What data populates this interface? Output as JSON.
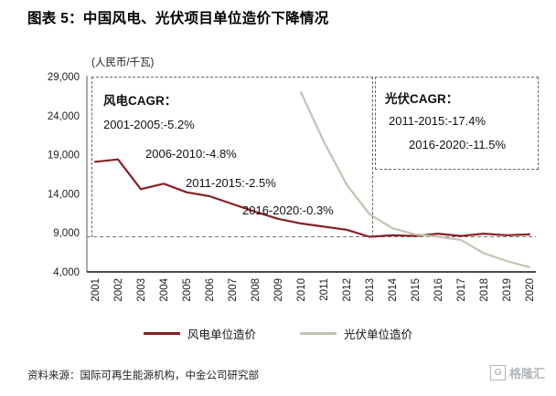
{
  "title": "图表 5：中国风电、光伏项目单位造价下降情况",
  "unit_label": "(人民币/千瓦)",
  "annotations": {
    "wind": {
      "heading": "风电CAGR：",
      "lines": [
        "2001-2005:-5.2%",
        "2006-2010:-4.8%",
        "2011-2015:-2.5%",
        "2016-2020:-0.3%"
      ]
    },
    "pv": {
      "heading": "光伏CAGR：",
      "lines": [
        "2011-2015:-17.4%",
        "2016-2020:-11.5%"
      ]
    }
  },
  "source": "资料来源：国际可再生能源机构，中金公司研究部",
  "logo": {
    "icon": "G",
    "text": "格隆汇"
  },
  "chart_data": {
    "type": "line",
    "x": [
      2001,
      2002,
      2003,
      2004,
      2005,
      2006,
      2007,
      2008,
      2009,
      2010,
      2011,
      2012,
      2013,
      2014,
      2015,
      2016,
      2017,
      2018,
      2019,
      2020
    ],
    "series": [
      {
        "name": "风电单位造价",
        "color": "#8a1f24",
        "values": [
          18100,
          18400,
          14600,
          15300,
          14200,
          13700,
          12700,
          11700,
          10800,
          10200,
          9800,
          9400,
          8500,
          8700,
          8600,
          8900,
          8600,
          8900,
          8700,
          8800
        ]
      },
      {
        "name": "光伏单位造价",
        "color": "#c6c2b2",
        "values": [
          null,
          null,
          null,
          null,
          null,
          null,
          null,
          null,
          null,
          27000,
          20700,
          15200,
          11400,
          9600,
          8800,
          8500,
          8100,
          6400,
          5400,
          4600
        ]
      }
    ],
    "title": "中国风电、光伏项目单位造价下降情况",
    "xlabel": "",
    "ylabel": "(人民币/千瓦)",
    "ylim": [
      4000,
      29000
    ],
    "yticks": [
      4000,
      9000,
      14000,
      19000,
      24000,
      29000
    ],
    "reference_line": 8500,
    "grid": false,
    "legend_position": "bottom"
  }
}
